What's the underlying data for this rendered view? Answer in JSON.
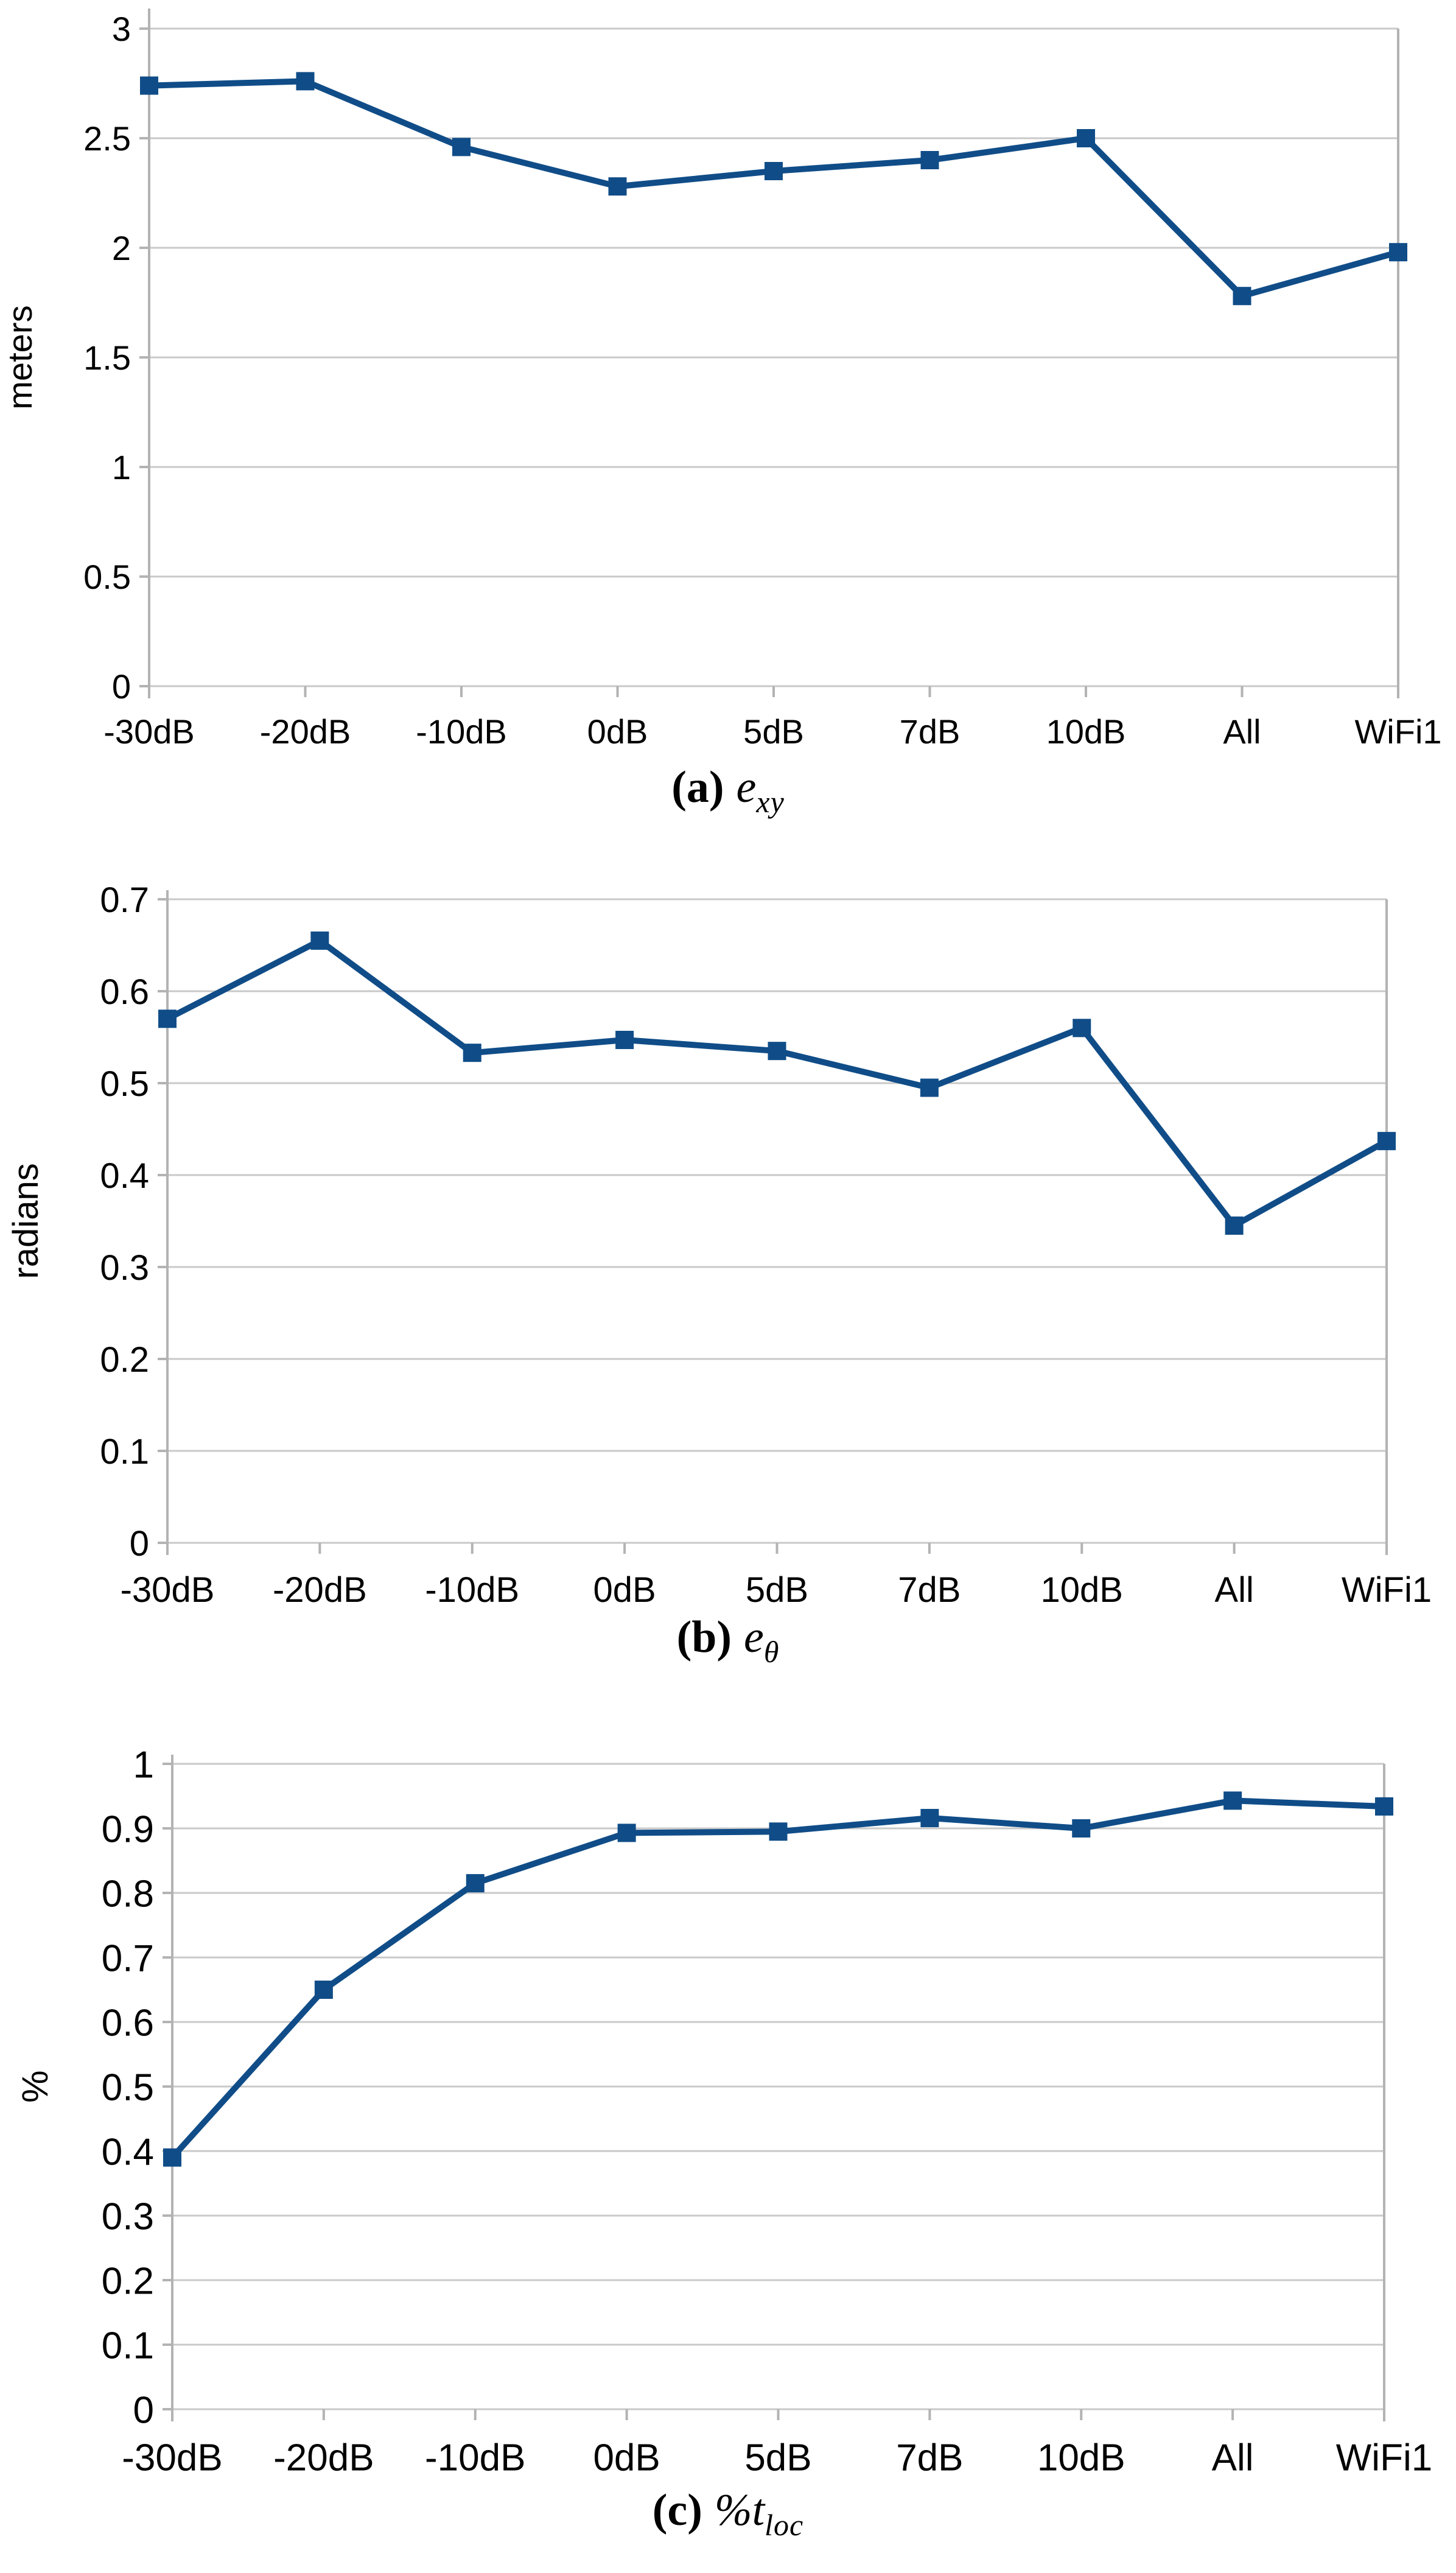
{
  "colors": {
    "series": "#104d88",
    "gridline": "#c9c9c9",
    "axis": "#b3b3b3",
    "text": "#000000",
    "background": "#ffffff"
  },
  "chart_data": [
    {
      "id": "a",
      "type": "line",
      "caption": {
        "prefix": "(a)",
        "symbol": "e",
        "subscript": "xy"
      },
      "ylabel": "meters",
      "xlabel": "",
      "legend": "none",
      "grid": "horizontal",
      "marker": "square",
      "categories": [
        "-30dB",
        "-20dB",
        "-10dB",
        "0dB",
        "5dB",
        "7dB",
        "10dB",
        "All",
        "WiFi1"
      ],
      "values": [
        2.74,
        2.76,
        2.46,
        2.28,
        2.35,
        2.4,
        2.5,
        1.78,
        1.98
      ],
      "ylim": [
        0,
        3
      ],
      "yticks": [
        {
          "v": 3,
          "label": "3"
        },
        {
          "v": 2.5,
          "label": "2.5"
        },
        {
          "v": 2,
          "label": "2"
        },
        {
          "v": 1.5,
          "label": "1.5"
        },
        {
          "v": 1,
          "label": "1"
        },
        {
          "v": 0.5,
          "label": "0.5"
        },
        {
          "v": 0,
          "label": "0"
        }
      ]
    },
    {
      "id": "b",
      "type": "line",
      "caption": {
        "prefix": "(b)",
        "symbol": "e",
        "subscript": "θ"
      },
      "ylabel": "radians",
      "xlabel": "",
      "legend": "none",
      "grid": "horizontal",
      "marker": "square",
      "categories": [
        "-30dB",
        "-20dB",
        "-10dB",
        "0dB",
        "5dB",
        "7dB",
        "10dB",
        "All",
        "WiFi1"
      ],
      "values": [
        0.57,
        0.655,
        0.533,
        0.547,
        0.535,
        0.495,
        0.56,
        0.345,
        0.437
      ],
      "ylim": [
        0,
        0.7
      ],
      "yticks": [
        {
          "v": 0.7,
          "label": "0.7"
        },
        {
          "v": 0.6,
          "label": "0.6"
        },
        {
          "v": 0.5,
          "label": "0.5"
        },
        {
          "v": 0.4,
          "label": "0.4"
        },
        {
          "v": 0.3,
          "label": "0.3"
        },
        {
          "v": 0.2,
          "label": "0.2"
        },
        {
          "v": 0.1,
          "label": "0.1"
        },
        {
          "v": 0,
          "label": "0"
        }
      ]
    },
    {
      "id": "c",
      "type": "line",
      "caption": {
        "prefix": "(c)",
        "symbol": "%t",
        "subscript": "loc"
      },
      "ylabel": "%",
      "xlabel": "",
      "legend": "none",
      "grid": "horizontal",
      "marker": "square",
      "categories": [
        "-30dB",
        "-20dB",
        "-10dB",
        "0dB",
        "5dB",
        "7dB",
        "10dB",
        "All",
        "WiFi1"
      ],
      "values": [
        0.39,
        0.65,
        0.815,
        0.893,
        0.895,
        0.916,
        0.9,
        0.943,
        0.934
      ],
      "ylim": [
        0,
        1
      ],
      "yticks": [
        {
          "v": 1,
          "label": "1"
        },
        {
          "v": 0.9,
          "label": "0.9"
        },
        {
          "v": 0.8,
          "label": "0.8"
        },
        {
          "v": 0.7,
          "label": "0.7"
        },
        {
          "v": 0.6,
          "label": "0.6"
        },
        {
          "v": 0.5,
          "label": "0.5"
        },
        {
          "v": 0.4,
          "label": "0.4"
        },
        {
          "v": 0.3,
          "label": "0.3"
        },
        {
          "v": 0.2,
          "label": "0.2"
        },
        {
          "v": 0.1,
          "label": "0.1"
        },
        {
          "v": 0,
          "label": "0"
        }
      ]
    }
  ]
}
